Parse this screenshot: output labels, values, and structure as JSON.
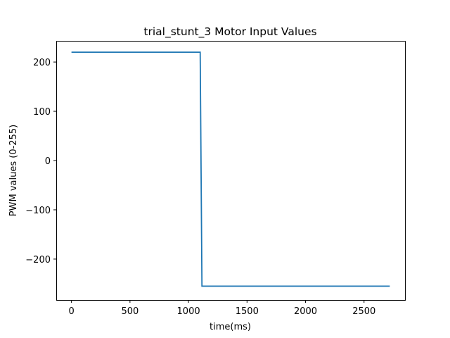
{
  "chart_data": {
    "type": "line",
    "title": "trial_stunt_3 Motor Input Values",
    "xlabel": "time(ms)",
    "ylabel": "PWM values (0-255)",
    "xlim": [
      -130,
      2850
    ],
    "ylim": [
      -283,
      243
    ],
    "x_ticks": [
      0,
      500,
      1000,
      1500,
      2000,
      2500
    ],
    "x_tick_labels": [
      "0",
      "500",
      "1000",
      "1500",
      "2000",
      "2500"
    ],
    "y_ticks": [
      -200,
      -100,
      0,
      100,
      200
    ],
    "y_tick_labels": [
      "−200",
      "−100",
      "0",
      "100",
      "200"
    ],
    "grid": false,
    "legend": "none",
    "series": [
      {
        "color": "#1f77b4",
        "x": [
          0,
          1100,
          1115,
          2720
        ],
        "y": [
          220,
          220,
          -255,
          -255
        ]
      }
    ]
  }
}
